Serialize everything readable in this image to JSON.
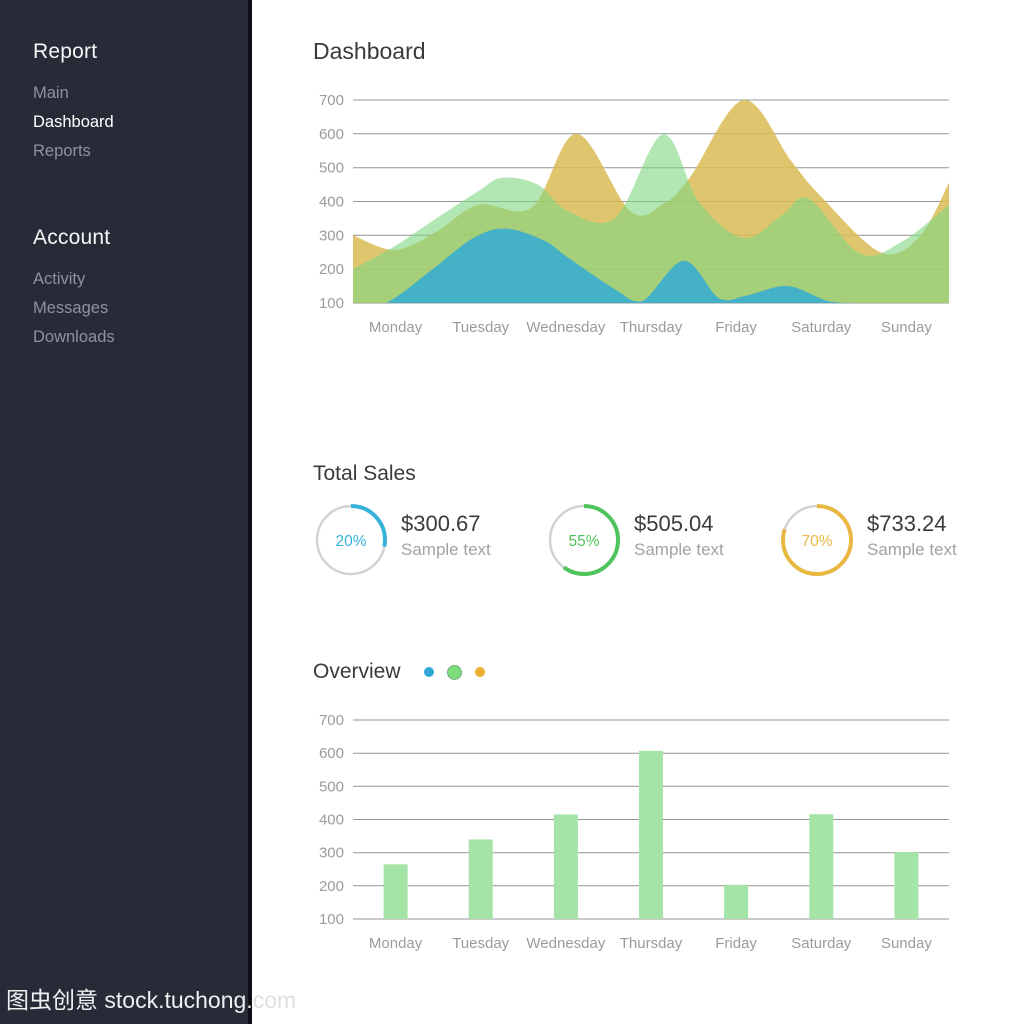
{
  "header": {
    "title": "Dashboard"
  },
  "sidebar": {
    "sections": [
      {
        "title": "Report",
        "items": [
          {
            "label": "Main",
            "active": false
          },
          {
            "label": "Dashboard",
            "active": true
          },
          {
            "label": "Reports",
            "active": false
          }
        ]
      },
      {
        "title": "Account",
        "items": [
          {
            "label": "Activity",
            "active": false
          },
          {
            "label": "Messages",
            "active": false
          },
          {
            "label": "Downloads",
            "active": false
          }
        ]
      }
    ]
  },
  "total_sales": {
    "title": "Total Sales",
    "items": [
      {
        "percent": "20%",
        "arc": 28,
        "amount": "$300.67",
        "caption": "Sample text",
        "color": "#36b1da"
      },
      {
        "percent": "55%",
        "arc": 60,
        "amount": "$505.04",
        "caption": "Sample text",
        "color": "#4fc45c"
      },
      {
        "percent": "70%",
        "arc": 80,
        "amount": "$733.24",
        "caption": "Sample text",
        "color": "#e8b843"
      }
    ]
  },
  "overview": {
    "title": "Overview",
    "legend": [
      {
        "name": "legend-dot-blue",
        "color": "#2ea8d5",
        "size": 10
      },
      {
        "name": "legend-dot-green",
        "color": "#7ddd7d",
        "ring": "#6faf78",
        "size": 13
      },
      {
        "name": "legend-dot-yellow",
        "color": "#eab02e",
        "size": 10
      }
    ]
  },
  "watermark": {
    "text": "图虫创意 stock.tuchong.com"
  },
  "chart_data": [
    {
      "type": "area",
      "title": "Dashboard weekly area chart",
      "categories": [
        "Monday",
        "Tuesday",
        "Wednesday",
        "Thursday",
        "Friday",
        "Saturday",
        "Sunday"
      ],
      "ymin": 100,
      "ymax": 700,
      "yticks": [
        700,
        600,
        500,
        400,
        300,
        200,
        100
      ],
      "grid": "horizontal",
      "legend_position": "none",
      "series": [
        {
          "name": "yellow",
          "color": "#d9bc55",
          "opacity": 0.85,
          "points": [
            [
              0,
              300
            ],
            [
              0.07,
              257
            ],
            [
              0.14,
              310
            ],
            [
              0.21,
              390
            ],
            [
              0.3,
              382
            ],
            [
              0.375,
              600
            ],
            [
              0.465,
              372
            ],
            [
              0.52,
              392
            ],
            [
              0.565,
              470
            ],
            [
              0.655,
              700
            ],
            [
              0.735,
              520
            ],
            [
              0.785,
              415
            ],
            [
              0.885,
              250
            ],
            [
              0.95,
              295
            ],
            [
              1,
              455
            ]
          ]
        },
        {
          "name": "green",
          "color": "#7fd67f",
          "opacity": 0.6,
          "points": [
            [
              0,
              200
            ],
            [
              0.07,
              268
            ],
            [
              0.14,
              350
            ],
            [
              0.21,
              430
            ],
            [
              0.25,
              470
            ],
            [
              0.31,
              450
            ],
            [
              0.36,
              372
            ],
            [
              0.44,
              352
            ],
            [
              0.52,
              598
            ],
            [
              0.58,
              400
            ],
            [
              0.655,
              292
            ],
            [
              0.72,
              360
            ],
            [
              0.765,
              408
            ],
            [
              0.85,
              247
            ],
            [
              0.92,
              280
            ],
            [
              1,
              390
            ]
          ]
        },
        {
          "name": "blue",
          "color": "#2fa9d8",
          "opacity": 0.82,
          "points": [
            [
              0,
              100
            ],
            [
              0.055,
              100
            ],
            [
              0.13,
              195
            ],
            [
              0.2,
              290
            ],
            [
              0.255,
              320
            ],
            [
              0.32,
              285
            ],
            [
              0.36,
              235
            ],
            [
              0.44,
              140
            ],
            [
              0.485,
              105
            ],
            [
              0.555,
              225
            ],
            [
              0.615,
              113
            ],
            [
              0.66,
              122
            ],
            [
              0.73,
              150
            ],
            [
              0.8,
              104
            ],
            [
              0.86,
              100
            ],
            [
              1,
              100
            ]
          ]
        }
      ]
    },
    {
      "type": "bar",
      "title": "Overview weekly bar chart",
      "categories": [
        "Monday",
        "Tuesday",
        "Wednesday",
        "Thursday",
        "Friday",
        "Saturday",
        "Sunday"
      ],
      "values": [
        265,
        340,
        415,
        607,
        203,
        416,
        301
      ],
      "ymin": 100,
      "ymax": 700,
      "yticks": [
        700,
        600,
        500,
        400,
        300,
        200,
        100
      ],
      "grid": "horizontal",
      "bar_color": "#a4e4a7"
    }
  ],
  "style": {
    "grid_color": "#949494",
    "tick_color": "#9b9b9b",
    "ring_gray": "#d2d2d2"
  }
}
